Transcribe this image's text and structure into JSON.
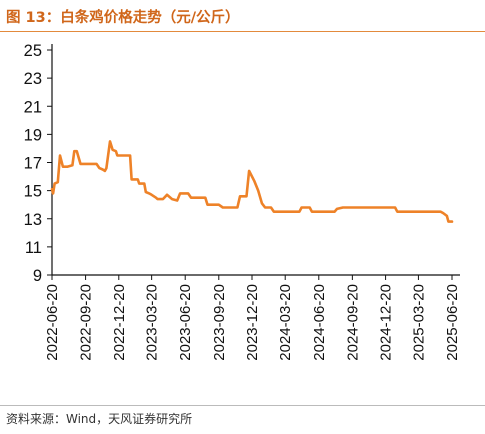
{
  "title": "图 13：白条鸡价格走势（元/公斤）",
  "source": "资料来源：Wind，天风证券研究所",
  "chart_data": {
    "type": "line",
    "title": "图 13：白条鸡价格走势（元/公斤）",
    "xlabel": "",
    "ylabel": "",
    "ylim": [
      9,
      25
    ],
    "yticks": [
      9,
      11,
      13,
      15,
      17,
      19,
      21,
      23,
      25
    ],
    "xticks": [
      "2022-06-20",
      "2022-09-20",
      "2022-12-20",
      "2023-03-20",
      "2023-06-20",
      "2023-09-20",
      "2023-12-20",
      "2024-03-20",
      "2024-06-20",
      "2024-09-20",
      "2024-12-20",
      "2025-03-20",
      "2025-06-20"
    ],
    "xlim": [
      "2022-06-20",
      "2025-06-20"
    ],
    "grid": false,
    "legend": "none",
    "color": "#ee8228",
    "series": [
      {
        "points": [
          [
            "2022-06-20",
            15.1
          ],
          [
            "2022-06-23",
            14.8
          ],
          [
            "2022-06-27",
            15.5
          ],
          [
            "2022-07-06",
            15.6
          ],
          [
            "2022-07-12",
            17.5
          ],
          [
            "2022-07-20",
            16.7
          ],
          [
            "2022-08-01",
            16.7
          ],
          [
            "2022-08-15",
            16.8
          ],
          [
            "2022-08-20",
            17.8
          ],
          [
            "2022-08-27",
            17.8
          ],
          [
            "2022-09-06",
            16.9
          ],
          [
            "2022-10-06",
            16.9
          ],
          [
            "2022-10-20",
            16.9
          ],
          [
            "2022-10-28",
            16.6
          ],
          [
            "2022-11-06",
            16.5
          ],
          [
            "2022-11-12",
            16.4
          ],
          [
            "2022-11-16",
            16.6
          ],
          [
            "2022-11-26",
            18.5
          ],
          [
            "2022-12-03",
            17.9
          ],
          [
            "2022-12-12",
            17.8
          ],
          [
            "2022-12-16",
            17.5
          ],
          [
            "2023-01-20",
            17.5
          ],
          [
            "2023-01-24",
            15.8
          ],
          [
            "2023-02-10",
            15.8
          ],
          [
            "2023-02-14",
            15.5
          ],
          [
            "2023-02-28",
            15.5
          ],
          [
            "2023-03-04",
            14.9
          ],
          [
            "2023-03-13",
            14.8
          ],
          [
            "2023-03-20",
            14.7
          ],
          [
            "2023-04-01",
            14.5
          ],
          [
            "2023-04-05",
            14.4
          ],
          [
            "2023-04-20",
            14.4
          ],
          [
            "2023-05-01",
            14.7
          ],
          [
            "2023-05-15",
            14.4
          ],
          [
            "2023-05-29",
            14.3
          ],
          [
            "2023-06-06",
            14.8
          ],
          [
            "2023-06-28",
            14.8
          ],
          [
            "2023-07-06",
            14.5
          ],
          [
            "2023-08-14",
            14.5
          ],
          [
            "2023-08-20",
            14.0
          ],
          [
            "2023-09-20",
            14.0
          ],
          [
            "2023-10-01",
            13.8
          ],
          [
            "2023-11-10",
            13.8
          ],
          [
            "2023-11-17",
            14.6
          ],
          [
            "2023-12-05",
            14.6
          ],
          [
            "2023-12-12",
            16.4
          ],
          [
            "2023-12-26",
            15.7
          ],
          [
            "2024-01-06",
            15.0
          ],
          [
            "2024-01-16",
            14.1
          ],
          [
            "2024-01-25",
            13.8
          ],
          [
            "2024-02-10",
            13.8
          ],
          [
            "2024-02-18",
            13.5
          ],
          [
            "2024-04-28",
            13.5
          ],
          [
            "2024-05-04",
            13.8
          ],
          [
            "2024-05-26",
            13.8
          ],
          [
            "2024-06-01",
            13.5
          ],
          [
            "2024-08-02",
            13.5
          ],
          [
            "2024-08-09",
            13.7
          ],
          [
            "2024-08-25",
            13.8
          ],
          [
            "2025-01-15",
            13.8
          ],
          [
            "2025-01-21",
            13.5
          ],
          [
            "2025-05-20",
            13.5
          ],
          [
            "2025-05-27",
            13.4
          ],
          [
            "2025-06-06",
            13.2
          ],
          [
            "2025-06-10",
            12.8
          ],
          [
            "2025-06-20",
            12.8
          ]
        ]
      }
    ]
  }
}
